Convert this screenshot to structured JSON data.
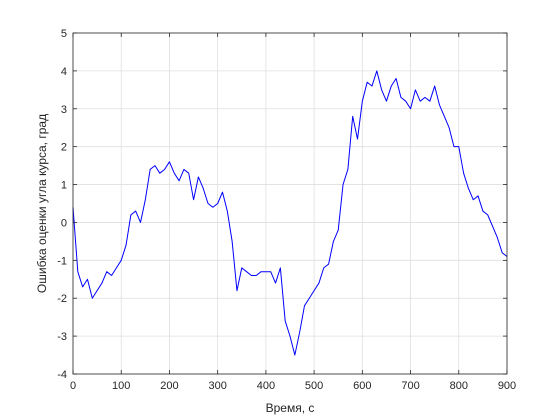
{
  "chart_data": {
    "type": "line",
    "title": "",
    "xlabel": "Время, с",
    "ylabel": "Ошибка оценки угла курса, град",
    "xlim": [
      0,
      900
    ],
    "ylim": [
      -4,
      5
    ],
    "xticks": [
      0,
      100,
      200,
      300,
      400,
      500,
      600,
      700,
      800,
      900
    ],
    "yticks": [
      -4,
      -3,
      -2,
      -1,
      0,
      1,
      2,
      3,
      4,
      5
    ],
    "grid": true,
    "legend": "none",
    "series": [
      {
        "color": "#0000ff",
        "x": [
          0,
          10,
          20,
          30,
          40,
          50,
          60,
          70,
          80,
          90,
          100,
          110,
          120,
          130,
          140,
          150,
          160,
          170,
          180,
          190,
          200,
          210,
          220,
          230,
          240,
          250,
          260,
          270,
          280,
          290,
          300,
          310,
          320,
          330,
          340,
          350,
          360,
          370,
          380,
          390,
          400,
          410,
          420,
          430,
          440,
          450,
          460,
          470,
          480,
          490,
          500,
          510,
          520,
          530,
          540,
          550,
          560,
          570,
          580,
          590,
          600,
          610,
          620,
          630,
          640,
          650,
          660,
          670,
          680,
          690,
          700,
          710,
          720,
          730,
          740,
          750,
          760,
          770,
          780,
          790,
          800,
          810,
          820,
          830,
          840,
          850,
          860,
          870,
          880,
          890,
          900
        ],
        "y": [
          0.4,
          -1.3,
          -1.7,
          -1.5,
          -2.0,
          -1.8,
          -1.6,
          -1.3,
          -1.4,
          -1.2,
          -1.0,
          -0.6,
          0.2,
          0.3,
          0.0,
          0.6,
          1.4,
          1.5,
          1.3,
          1.4,
          1.6,
          1.3,
          1.1,
          1.4,
          1.3,
          0.6,
          1.2,
          0.9,
          0.5,
          0.4,
          0.5,
          0.8,
          0.3,
          -0.5,
          -1.8,
          -1.2,
          -1.3,
          -1.4,
          -1.4,
          -1.3,
          -1.3,
          -1.3,
          -1.6,
          -1.2,
          -2.6,
          -3.0,
          -3.5,
          -2.9,
          -2.2,
          -2.0,
          -1.8,
          -1.6,
          -1.2,
          -1.1,
          -0.5,
          -0.2,
          1.0,
          1.4,
          2.8,
          2.2,
          3.2,
          3.7,
          3.6,
          4.0,
          3.5,
          3.2,
          3.6,
          3.8,
          3.3,
          3.2,
          3.0,
          3.5,
          3.2,
          3.3,
          3.2,
          3.6,
          3.1,
          2.8,
          2.5,
          2.0,
          2.0,
          1.3,
          0.9,
          0.6,
          0.7,
          0.3,
          0.2,
          -0.1,
          -0.4,
          -0.8,
          -0.9
        ]
      }
    ]
  }
}
